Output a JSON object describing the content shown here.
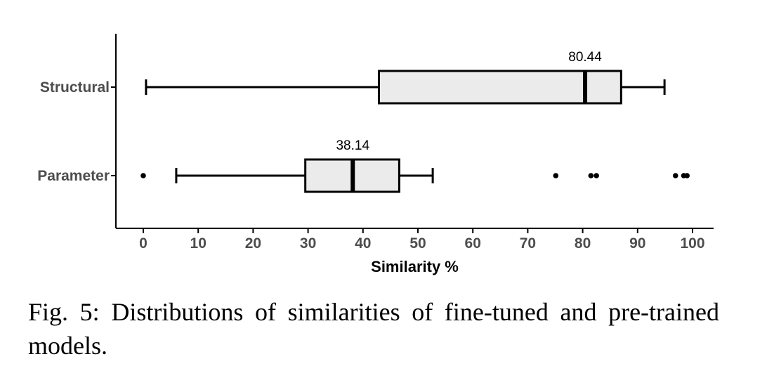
{
  "chart_data": {
    "type": "boxplot",
    "orientation": "horizontal",
    "xlabel": "Similarity %",
    "xlim": [
      -5,
      104
    ],
    "xticks": [
      0,
      10,
      20,
      30,
      40,
      50,
      60,
      70,
      80,
      90,
      100
    ],
    "categories": [
      "Structural",
      "Parameter"
    ],
    "boxes": [
      {
        "name": "Structural",
        "whisker_low": 0.5,
        "q1": 42.9,
        "median": 80.44,
        "q3": 87.0,
        "whisker_high": 94.9,
        "median_label": "80.44",
        "outliers": []
      },
      {
        "name": "Parameter",
        "whisker_low": 6.0,
        "q1": 29.5,
        "median": 38.14,
        "q3": 46.6,
        "whisker_high": 52.7,
        "median_label": "38.14",
        "outliers": [
          0.0,
          75.1,
          81.5,
          82.5,
          96.9,
          98.4,
          99.0
        ]
      }
    ],
    "box_fill": "#ebebeb",
    "line_color": "#000000",
    "grid": false
  },
  "caption": "Fig. 5: Distributions of similarities of fine-tuned and pre-trained models."
}
